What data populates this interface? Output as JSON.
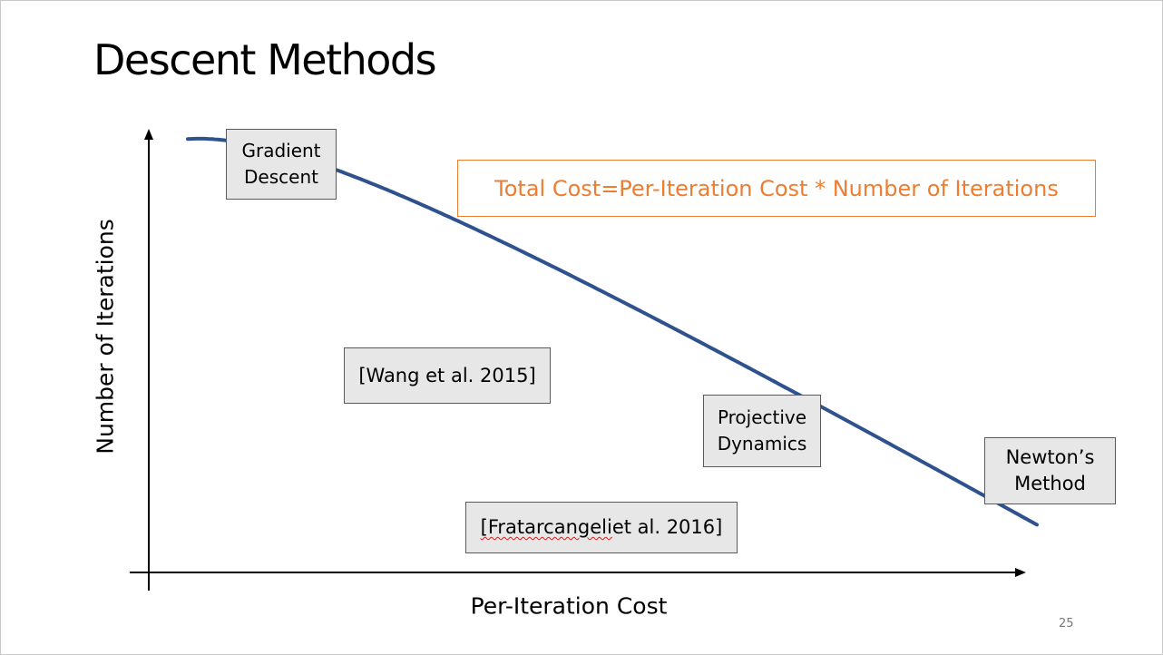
{
  "slide": {
    "title": "Descent Methods",
    "page_number": "25",
    "formula": "Total Cost=Per-Iteration Cost * Number of Iterations",
    "x_axis_label": "Per-Iteration Cost",
    "y_axis_label": "Number of Iterations",
    "methods": {
      "gradient_descent": "Gradient\nDescent",
      "wang": "[Wang et al. 2015]",
      "projective_dynamics": "Projective\nDynamics",
      "newton": "Newton’s\nMethod",
      "fratarcangeli_name": "[Fratarcangeli",
      "fratarcangeli_rest": " et al. 2016]"
    },
    "colors": {
      "curve": "#2f528f",
      "formula": "#ed7d31",
      "box_fill": "#e7e7e7",
      "axis": "#000000"
    }
  }
}
